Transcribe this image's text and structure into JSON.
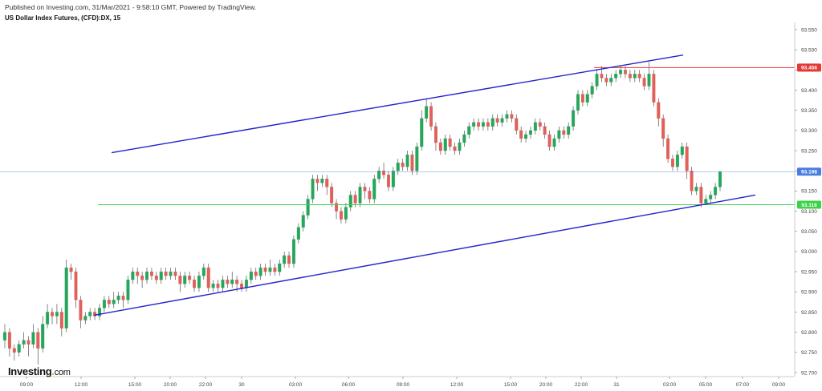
{
  "header": {
    "published": "Published on Investing.com, 31/Mar/2021 - 9:58:10 GMT, Powered by TradingView.",
    "symbol": "US Dollar Index Futures, (CFD):DX, 15"
  },
  "logo": {
    "brand": "Investing",
    "suffix": "com"
  },
  "colors": {
    "up": "#26a65b",
    "down": "#e0605a",
    "channel": "#2222cc",
    "resistance": "#e53935",
    "support": "#3cd24a",
    "current": "#4a7de0"
  },
  "chart_data": {
    "type": "candlestick",
    "title": "US Dollar Index Futures, (CFD):DX, 15",
    "ylim": [
      92.7,
      93.58
    ],
    "y_ticks": [
      "93.550",
      "93.500",
      "93.450",
      "93.400",
      "93.350",
      "93.300",
      "93.250",
      "93.200",
      "93.150",
      "93.100",
      "93.050",
      "93.000",
      "92.950",
      "92.900",
      "92.850",
      "92.800",
      "92.750",
      "92.700"
    ],
    "x_ticks": [
      "09:00",
      "12:00",
      "15:00",
      "20:00",
      "22:00",
      "30",
      "03:00",
      "06:00",
      "09:00",
      "12:00",
      "15:00",
      "20:00",
      "22:00",
      "31",
      "03:00",
      "05:00",
      "07:00",
      "09:00"
    ],
    "price_badges": [
      {
        "name": "resistance",
        "value": "93.456"
      },
      {
        "name": "current",
        "value": "93.198"
      },
      {
        "name": "support",
        "value": "93.116"
      }
    ],
    "horizontal_lines": [
      {
        "name": "resistance",
        "value": 93.456
      },
      {
        "name": "current",
        "value": 93.198
      },
      {
        "name": "support",
        "value": 93.116
      }
    ],
    "candles": [
      [
        92.78,
        92.8,
        92.82,
        92.76
      ],
      [
        92.8,
        92.76,
        92.81,
        92.74
      ],
      [
        92.76,
        92.75,
        92.77,
        92.73
      ],
      [
        92.75,
        92.77,
        92.78,
        92.74
      ],
      [
        92.77,
        92.78,
        92.8,
        92.76
      ],
      [
        92.78,
        92.77,
        92.79,
        92.74
      ],
      [
        92.77,
        92.8,
        92.82,
        92.76
      ],
      [
        92.8,
        92.76,
        92.81,
        92.72
      ],
      [
        92.76,
        92.82,
        92.84,
        92.75
      ],
      [
        92.82,
        92.85,
        92.87,
        92.81
      ],
      [
        92.85,
        92.84,
        92.86,
        92.82
      ],
      [
        92.84,
        92.85,
        92.87,
        92.82
      ],
      [
        92.85,
        92.81,
        92.86,
        92.79
      ],
      [
        92.81,
        92.96,
        92.98,
        92.8
      ],
      [
        92.96,
        92.95,
        92.97,
        92.93
      ],
      [
        92.95,
        92.88,
        92.96,
        92.86
      ],
      [
        92.88,
        92.83,
        92.89,
        92.81
      ],
      [
        92.83,
        92.84,
        92.85,
        92.82
      ],
      [
        92.84,
        92.85,
        92.86,
        92.83
      ],
      [
        92.85,
        92.84,
        92.86,
        92.83
      ],
      [
        92.84,
        92.86,
        92.87,
        92.83
      ],
      [
        92.86,
        92.88,
        92.89,
        92.85
      ],
      [
        92.88,
        92.87,
        92.89,
        92.86
      ],
      [
        92.87,
        92.88,
        92.9,
        92.86
      ],
      [
        92.88,
        92.89,
        92.9,
        92.87
      ],
      [
        92.89,
        92.88,
        92.9,
        92.86
      ],
      [
        92.88,
        92.93,
        92.94,
        92.87
      ],
      [
        92.93,
        92.95,
        92.96,
        92.92
      ],
      [
        92.95,
        92.94,
        92.96,
        92.92
      ],
      [
        92.94,
        92.93,
        92.95,
        92.91
      ],
      [
        92.93,
        92.95,
        92.96,
        92.92
      ],
      [
        92.95,
        92.94,
        92.96,
        92.93
      ],
      [
        92.94,
        92.93,
        92.95,
        92.92
      ],
      [
        92.93,
        92.95,
        92.96,
        92.92
      ],
      [
        92.95,
        92.94,
        92.96,
        92.93
      ],
      [
        92.94,
        92.95,
        92.96,
        92.93
      ],
      [
        92.95,
        92.94,
        92.96,
        92.93
      ],
      [
        92.94,
        92.92,
        92.95,
        92.9
      ],
      [
        92.92,
        92.94,
        92.95,
        92.91
      ],
      [
        92.94,
        92.93,
        92.95,
        92.92
      ],
      [
        92.93,
        92.91,
        92.94,
        92.9
      ],
      [
        92.91,
        92.94,
        92.95,
        92.9
      ],
      [
        92.94,
        92.96,
        92.97,
        92.93
      ],
      [
        92.96,
        92.91,
        92.97,
        92.9
      ],
      [
        92.91,
        92.92,
        92.93,
        92.9
      ],
      [
        92.92,
        92.91,
        92.93,
        92.9
      ],
      [
        92.91,
        92.93,
        92.94,
        92.9
      ],
      [
        92.93,
        92.92,
        92.94,
        92.91
      ],
      [
        92.92,
        92.93,
        92.95,
        92.91
      ],
      [
        92.93,
        92.92,
        92.94,
        92.9
      ],
      [
        92.92,
        92.91,
        92.93,
        92.9
      ],
      [
        92.91,
        92.93,
        92.94,
        92.9
      ],
      [
        92.93,
        92.95,
        92.96,
        92.92
      ],
      [
        92.95,
        92.94,
        92.96,
        92.93
      ],
      [
        92.94,
        92.96,
        92.97,
        92.93
      ],
      [
        92.96,
        92.95,
        92.97,
        92.94
      ],
      [
        92.95,
        92.96,
        92.98,
        92.94
      ],
      [
        92.96,
        92.95,
        92.97,
        92.94
      ],
      [
        92.95,
        92.97,
        92.98,
        92.94
      ],
      [
        92.97,
        92.99,
        93.0,
        92.96
      ],
      [
        92.99,
        92.97,
        93.0,
        92.96
      ],
      [
        92.97,
        93.03,
        93.04,
        92.96
      ],
      [
        93.03,
        93.06,
        93.07,
        93.02
      ],
      [
        93.06,
        93.09,
        93.1,
        93.05
      ],
      [
        93.09,
        93.13,
        93.14,
        93.08
      ],
      [
        93.13,
        93.18,
        93.19,
        93.12
      ],
      [
        93.18,
        93.17,
        93.19,
        93.15
      ],
      [
        93.17,
        93.18,
        93.19,
        93.16
      ],
      [
        93.18,
        93.16,
        93.19,
        93.14
      ],
      [
        93.16,
        93.12,
        93.17,
        93.11
      ],
      [
        93.12,
        93.1,
        93.13,
        93.08
      ],
      [
        93.1,
        93.08,
        93.11,
        93.07
      ],
      [
        93.08,
        93.11,
        93.12,
        93.07
      ],
      [
        93.11,
        93.14,
        93.15,
        93.1
      ],
      [
        93.14,
        93.12,
        93.15,
        93.11
      ],
      [
        93.12,
        93.16,
        93.17,
        93.11
      ],
      [
        93.16,
        93.15,
        93.17,
        93.13
      ],
      [
        93.15,
        93.13,
        93.16,
        93.12
      ],
      [
        93.13,
        93.18,
        93.19,
        93.12
      ],
      [
        93.18,
        93.2,
        93.21,
        93.17
      ],
      [
        93.2,
        93.19,
        93.22,
        93.18
      ],
      [
        93.19,
        93.16,
        93.2,
        93.15
      ],
      [
        93.16,
        93.2,
        93.21,
        93.15
      ],
      [
        93.2,
        93.22,
        93.23,
        93.19
      ],
      [
        93.22,
        93.21,
        93.23,
        93.2
      ],
      [
        93.21,
        93.24,
        93.25,
        93.2
      ],
      [
        93.24,
        93.2,
        93.25,
        93.19
      ],
      [
        93.2,
        93.26,
        93.27,
        93.19
      ],
      [
        93.26,
        93.33,
        93.35,
        93.25
      ],
      [
        93.33,
        93.36,
        93.38,
        93.32
      ],
      [
        93.36,
        93.31,
        93.37,
        93.3
      ],
      [
        93.31,
        93.27,
        93.32,
        93.25
      ],
      [
        93.27,
        93.25,
        93.28,
        93.24
      ],
      [
        93.25,
        93.28,
        93.29,
        93.24
      ],
      [
        93.28,
        93.26,
        93.29,
        93.25
      ],
      [
        93.26,
        93.25,
        93.27,
        93.24
      ],
      [
        93.25,
        93.27,
        93.28,
        93.24
      ],
      [
        93.27,
        93.29,
        93.3,
        93.26
      ],
      [
        93.29,
        93.31,
        93.32,
        93.28
      ],
      [
        93.31,
        93.32,
        93.33,
        93.3
      ],
      [
        93.32,
        93.31,
        93.33,
        93.3
      ],
      [
        93.31,
        93.32,
        93.33,
        93.3
      ],
      [
        93.32,
        93.31,
        93.33,
        93.3
      ],
      [
        93.31,
        93.33,
        93.34,
        93.3
      ],
      [
        93.33,
        93.32,
        93.34,
        93.31
      ],
      [
        93.32,
        93.33,
        93.34,
        93.31
      ],
      [
        93.33,
        93.34,
        93.35,
        93.32
      ],
      [
        93.34,
        93.33,
        93.35,
        93.32
      ],
      [
        93.33,
        93.3,
        93.34,
        93.29
      ],
      [
        93.3,
        93.28,
        93.31,
        93.27
      ],
      [
        93.28,
        93.29,
        93.3,
        93.27
      ],
      [
        93.29,
        93.3,
        93.31,
        93.28
      ],
      [
        93.3,
        93.32,
        93.33,
        93.29
      ],
      [
        93.32,
        93.31,
        93.33,
        93.3
      ],
      [
        93.31,
        93.29,
        93.32,
        93.28
      ],
      [
        93.29,
        93.26,
        93.3,
        93.25
      ],
      [
        93.26,
        93.28,
        93.29,
        93.25
      ],
      [
        93.28,
        93.3,
        93.31,
        93.27
      ],
      [
        93.3,
        93.29,
        93.31,
        93.28
      ],
      [
        93.29,
        93.31,
        93.32,
        93.28
      ],
      [
        93.31,
        93.35,
        93.36,
        93.3
      ],
      [
        93.35,
        93.39,
        93.4,
        93.34
      ],
      [
        93.39,
        93.37,
        93.4,
        93.36
      ],
      [
        93.37,
        93.39,
        93.4,
        93.36
      ],
      [
        93.39,
        93.41,
        93.42,
        93.38
      ],
      [
        93.41,
        93.44,
        93.45,
        93.4
      ],
      [
        93.44,
        93.43,
        93.46,
        93.42
      ],
      [
        93.43,
        93.42,
        93.44,
        93.41
      ],
      [
        93.42,
        93.43,
        93.44,
        93.41
      ],
      [
        93.43,
        93.44,
        93.45,
        93.42
      ],
      [
        93.44,
        93.45,
        93.46,
        93.43
      ],
      [
        93.45,
        93.44,
        93.46,
        93.43
      ],
      [
        93.44,
        93.43,
        93.45,
        93.42
      ],
      [
        93.43,
        93.44,
        93.45,
        93.42
      ],
      [
        93.44,
        93.43,
        93.45,
        93.42
      ],
      [
        93.43,
        93.41,
        93.44,
        93.4
      ],
      [
        93.41,
        93.44,
        93.47,
        93.4
      ],
      [
        93.44,
        93.37,
        93.45,
        93.36
      ],
      [
        93.37,
        93.33,
        93.38,
        93.31
      ],
      [
        93.33,
        93.28,
        93.34,
        93.26
      ],
      [
        93.28,
        93.23,
        93.29,
        93.22
      ],
      [
        93.23,
        93.21,
        93.24,
        93.2
      ],
      [
        93.21,
        93.24,
        93.25,
        93.2
      ],
      [
        93.24,
        93.26,
        93.27,
        93.23
      ],
      [
        93.26,
        93.2,
        93.27,
        93.18
      ],
      [
        93.2,
        93.15,
        93.21,
        93.14
      ],
      [
        93.15,
        93.16,
        93.17,
        93.14
      ],
      [
        93.16,
        93.12,
        93.17,
        93.11
      ],
      [
        93.12,
        93.13,
        93.14,
        93.12
      ],
      [
        93.13,
        93.14,
        93.15,
        93.12
      ],
      [
        93.14,
        93.16,
        93.17,
        93.13
      ],
      [
        93.16,
        93.198,
        93.2,
        93.15
      ]
    ]
  }
}
